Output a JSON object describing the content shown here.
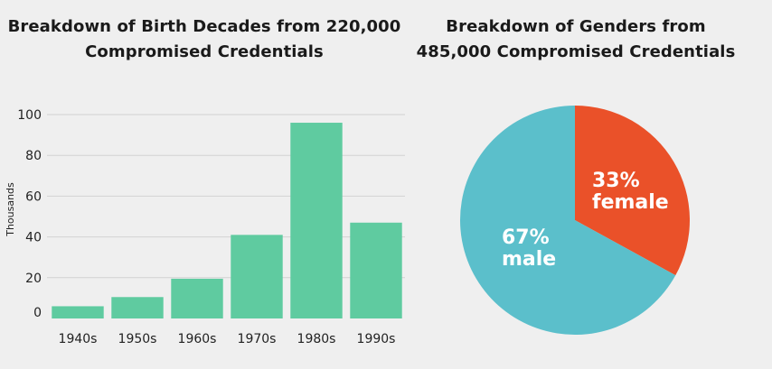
{
  "chart_data": [
    {
      "type": "bar",
      "title_line1": "Breakdown of Birth Decades from 220,000",
      "title_line2": "Compromised Credentials",
      "categories": [
        "1940s",
        "1950s",
        "1960s",
        "1970s",
        "1980s",
        "1990s"
      ],
      "values": [
        6,
        10.5,
        19.5,
        41,
        96,
        47
      ],
      "ylabel": "Thousands",
      "ylim": [
        0,
        100
      ],
      "yticks": [
        0,
        20,
        40,
        60,
        80,
        100
      ],
      "grid": true,
      "color": "#5fcba0"
    },
    {
      "type": "pie",
      "title_line1": "Breakdown of Genders from",
      "title_line2": "485,000 Compromised Credentials",
      "slices": [
        {
          "pct_label": "33%",
          "name": "female",
          "value": 33,
          "color": "#ea5129"
        },
        {
          "pct_label": "67%",
          "name": "male",
          "value": 67,
          "color": "#5bbfcb"
        }
      ]
    }
  ]
}
